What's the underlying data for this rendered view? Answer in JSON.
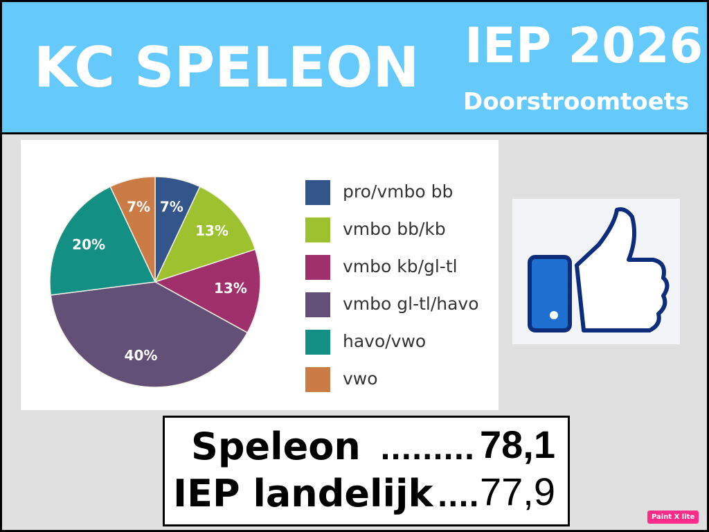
{
  "header": {
    "title": "KC SPELEON",
    "test": "IEP 2026",
    "subtitle": "Doorstroomtoets"
  },
  "chart_data": {
    "type": "pie",
    "categories": [
      "pro/vmbo bb",
      "vmbo bb/kb",
      "vmbo kb/gl-tl",
      "vmbo gl-tl/havo",
      "havo/vwo",
      "vwo"
    ],
    "values": [
      7,
      13,
      13,
      40,
      20,
      7
    ],
    "value_labels": [
      "7%",
      "13%",
      "13%",
      "40%",
      "20%",
      "7%"
    ],
    "colors": [
      "#34558b",
      "#9dc12f",
      "#a0306b",
      "#625077",
      "#148f84",
      "#cb7b45"
    ]
  },
  "scores": [
    {
      "label": "Speleon",
      "dots": ".........",
      "value": "78,1"
    },
    {
      "label": "IEP landelijk",
      "dots": "....",
      "value": "77,9"
    }
  ],
  "badge": "Paint X lite"
}
